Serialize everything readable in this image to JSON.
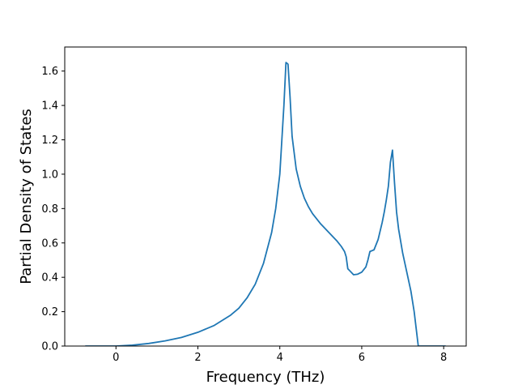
{
  "chart_data": {
    "type": "line",
    "title": "",
    "xlabel": "Frequency (THz)",
    "ylabel": "Partial Density of States",
    "xlim": [
      -1.25,
      8.55
    ],
    "ylim": [
      0.0,
      1.74
    ],
    "xticks": [
      0,
      2,
      4,
      6,
      8
    ],
    "xtick_labels": [
      "0",
      "2",
      "4",
      "6",
      "8"
    ],
    "yticks": [
      0.0,
      0.2,
      0.4,
      0.6,
      0.8,
      1.0,
      1.2,
      1.4,
      1.6
    ],
    "ytick_labels": [
      "0.0",
      "0.2",
      "0.4",
      "0.6",
      "0.8",
      "1.0",
      "1.2",
      "1.4",
      "1.6"
    ],
    "grid": false,
    "legend": "none",
    "series": [
      {
        "color": "#1f77b4",
        "x": [
          -0.75,
          0.0,
          0.4,
          0.8,
          1.2,
          1.6,
          2.0,
          2.4,
          2.8,
          3.0,
          3.2,
          3.4,
          3.6,
          3.8,
          3.9,
          4.0,
          4.05,
          4.1,
          4.15,
          4.2,
          4.25,
          4.3,
          4.4,
          4.5,
          4.6,
          4.7,
          4.8,
          5.0,
          5.2,
          5.4,
          5.5,
          5.58,
          5.62,
          5.66,
          5.7,
          5.8,
          5.9,
          6.0,
          6.1,
          6.15,
          6.2,
          6.25,
          6.3,
          6.4,
          6.5,
          6.55,
          6.6,
          6.65,
          6.7,
          6.75,
          6.8,
          6.85,
          6.9,
          7.0,
          7.1,
          7.2,
          7.28,
          7.33,
          7.38,
          7.45,
          8.05
        ],
        "y": [
          0.0,
          0.0,
          0.005,
          0.015,
          0.03,
          0.05,
          0.08,
          0.12,
          0.18,
          0.22,
          0.28,
          0.36,
          0.48,
          0.66,
          0.8,
          1.0,
          1.2,
          1.4,
          1.65,
          1.64,
          1.45,
          1.22,
          1.03,
          0.93,
          0.86,
          0.81,
          0.77,
          0.71,
          0.66,
          0.61,
          0.58,
          0.55,
          0.52,
          0.45,
          0.44,
          0.415,
          0.418,
          0.43,
          0.46,
          0.5,
          0.55,
          0.555,
          0.56,
          0.62,
          0.72,
          0.78,
          0.85,
          0.93,
          1.07,
          1.14,
          0.95,
          0.78,
          0.68,
          0.54,
          0.43,
          0.32,
          0.2,
          0.1,
          0.0,
          0.0,
          0.0
        ]
      }
    ]
  }
}
